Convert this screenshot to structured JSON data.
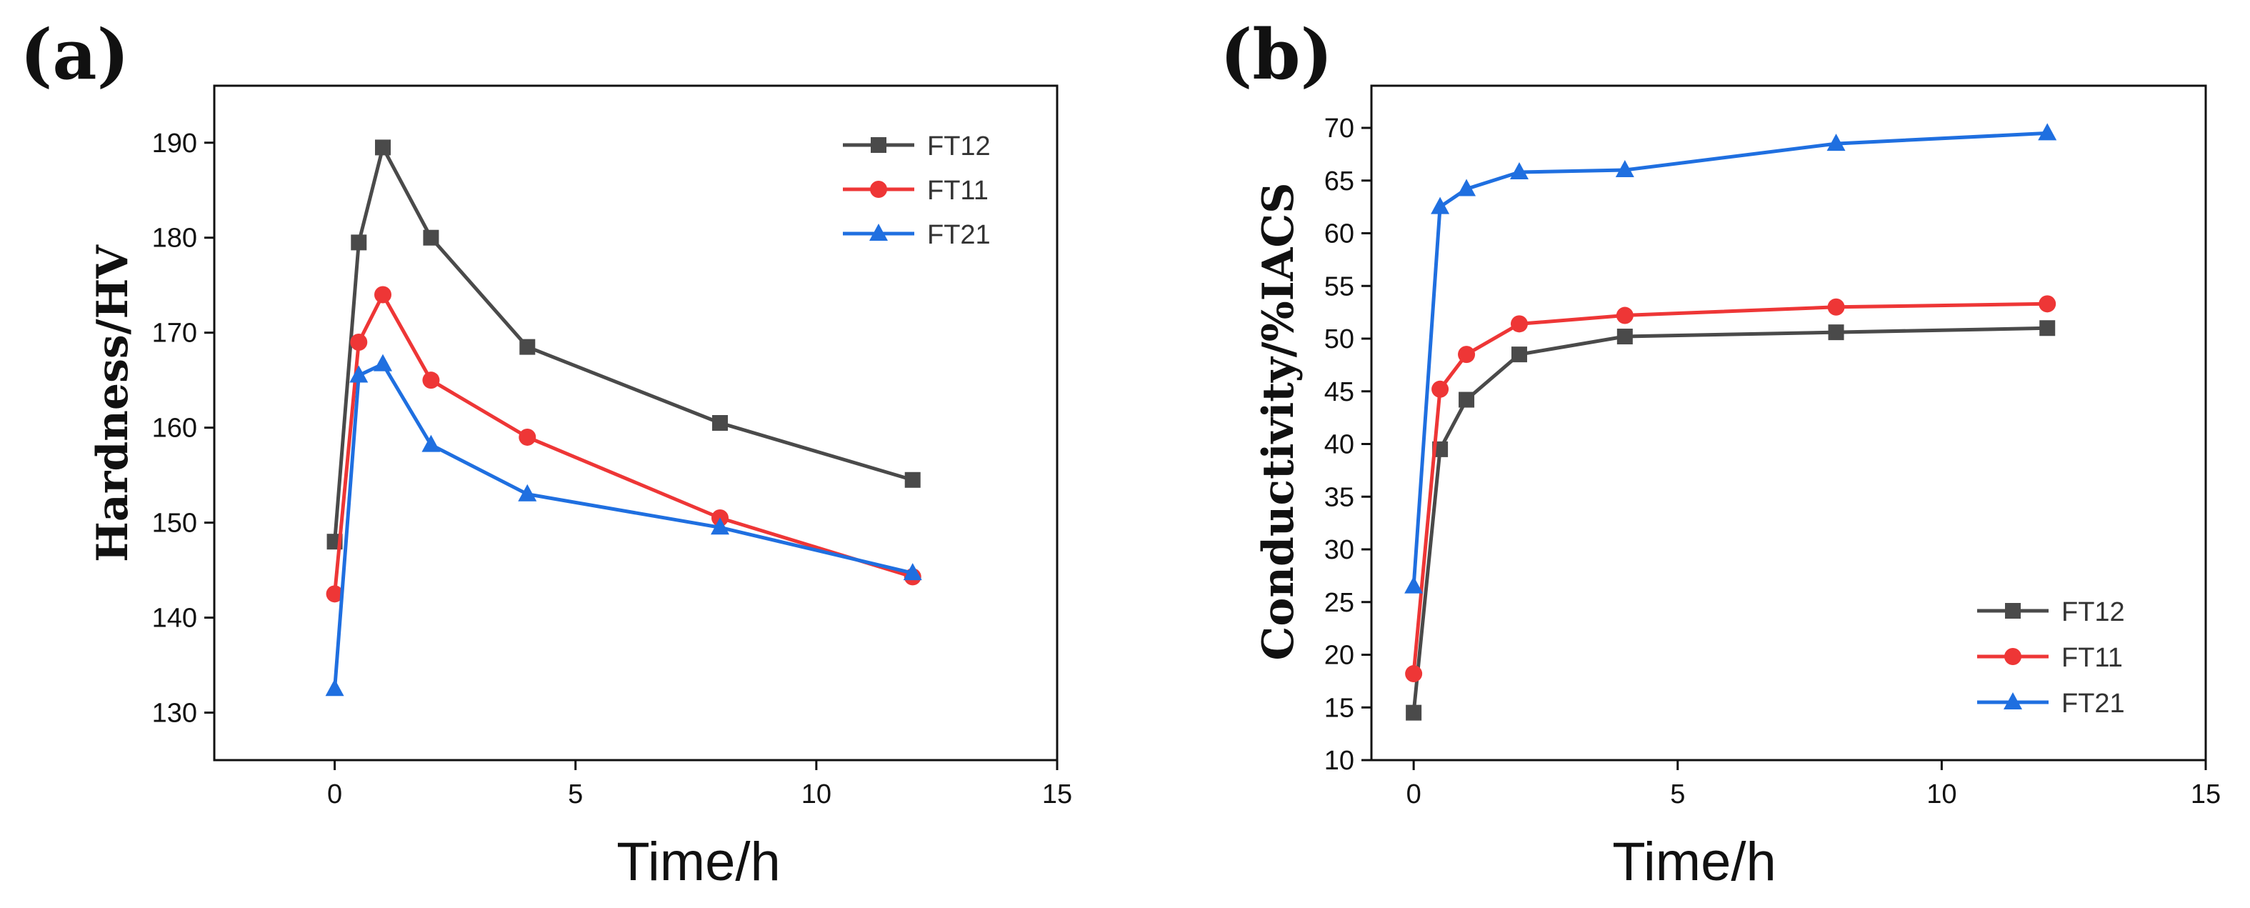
{
  "chart_data": [
    {
      "type": "line",
      "panel_label": "(a)",
      "title": "",
      "xlabel": "Time/h",
      "ylabel": "Hardness/HV",
      "xlim": [
        -2.5,
        15
      ],
      "ylim": [
        125,
        196
      ],
      "xticks": [
        0,
        5,
        10,
        15
      ],
      "yticks": [
        130,
        140,
        150,
        160,
        170,
        180,
        190
      ],
      "grid": false,
      "legend_position": "top-right",
      "x": [
        0,
        0.5,
        1,
        2,
        4,
        8,
        12
      ],
      "series": [
        {
          "name": "FT12",
          "color": "#4a4a4a",
          "marker": "square",
          "values": [
            148,
            179.5,
            189.5,
            180,
            168.5,
            160.5,
            154.5
          ]
        },
        {
          "name": "FT11",
          "color": "#ee3636",
          "marker": "circle",
          "values": [
            142.5,
            169,
            174,
            165,
            159,
            150.5,
            144.3
          ]
        },
        {
          "name": "FT21",
          "color": "#1f6fe0",
          "marker": "triangle",
          "values": [
            132.5,
            165.5,
            166.7,
            158.2,
            153,
            149.5,
            144.7
          ]
        }
      ]
    },
    {
      "type": "line",
      "panel_label": "(b)",
      "title": "",
      "xlabel": "Time/h",
      "ylabel": "Conductivity/%IACS",
      "xlim": [
        -0.8,
        15
      ],
      "ylim": [
        10,
        74
      ],
      "xticks": [
        0,
        5,
        10,
        15
      ],
      "yticks": [
        10,
        15,
        20,
        25,
        30,
        35,
        40,
        45,
        50,
        55,
        60,
        65,
        70
      ],
      "grid": false,
      "legend_position": "bottom-right",
      "x": [
        0,
        0.5,
        1,
        2,
        4,
        8,
        12
      ],
      "series": [
        {
          "name": "FT12",
          "color": "#4a4a4a",
          "marker": "square",
          "values": [
            14.5,
            39.5,
            44.2,
            48.5,
            50.2,
            50.6,
            51
          ]
        },
        {
          "name": "FT11",
          "color": "#ee3636",
          "marker": "circle",
          "values": [
            18.2,
            45.2,
            48.5,
            51.4,
            52.2,
            53,
            53.3
          ]
        },
        {
          "name": "FT21",
          "color": "#1f6fe0",
          "marker": "triangle",
          "values": [
            26.5,
            62.5,
            64.2,
            65.8,
            66,
            68.5,
            69.5
          ]
        }
      ]
    }
  ]
}
